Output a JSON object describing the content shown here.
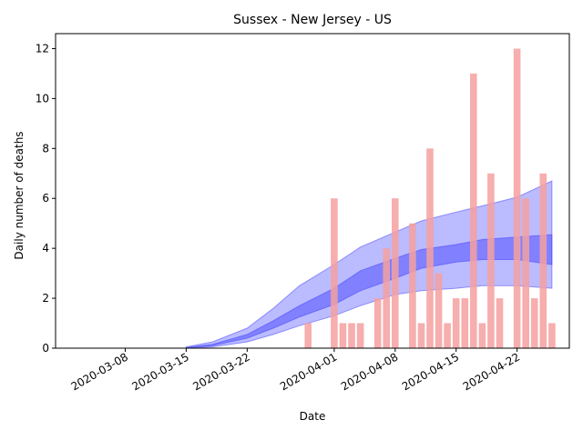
{
  "chart_data": {
    "type": "bar",
    "title": "Sussex - New Jersey - US",
    "xlabel": "Date",
    "ylabel": "Daily number of deaths",
    "ylim": [
      0,
      12.6
    ],
    "xlim": [
      "2020-02-29",
      "2020-04-28"
    ],
    "yticks": [
      0,
      2,
      4,
      6,
      8,
      10,
      12
    ],
    "xticks": [
      "2020-03-08",
      "2020-03-15",
      "2020-03-22",
      "2020-04-01",
      "2020-04-08",
      "2020-04-15",
      "2020-04-22"
    ],
    "grid": false,
    "bar_color": "#f4a0a0",
    "band_color": "#3b3bff",
    "bars": {
      "dates": [
        "2020-03-29",
        "2020-03-30",
        "2020-03-31",
        "2020-04-01",
        "2020-04-02",
        "2020-04-03",
        "2020-04-04",
        "2020-04-05",
        "2020-04-06",
        "2020-04-07",
        "2020-04-08",
        "2020-04-09",
        "2020-04-10",
        "2020-04-11",
        "2020-04-12",
        "2020-04-13",
        "2020-04-14",
        "2020-04-15",
        "2020-04-16",
        "2020-04-17",
        "2020-04-18",
        "2020-04-19",
        "2020-04-20",
        "2020-04-21",
        "2020-04-22",
        "2020-04-23",
        "2020-04-24",
        "2020-04-25",
        "2020-04-26"
      ],
      "values": [
        1,
        0,
        0,
        6,
        1,
        1,
        1,
        0,
        2,
        4,
        6,
        0,
        5,
        1,
        8,
        3,
        1,
        2,
        2,
        11,
        1,
        7,
        2,
        0,
        12,
        6,
        2,
        7,
        1
      ]
    },
    "bands": {
      "dates": [
        "2020-03-15",
        "2020-03-18",
        "2020-03-22",
        "2020-03-25",
        "2020-03-28",
        "2020-04-01",
        "2020-04-04",
        "2020-04-08",
        "2020-04-11",
        "2020-04-15",
        "2020-04-18",
        "2020-04-22",
        "2020-04-26"
      ],
      "outer_low": [
        0.0,
        0.05,
        0.25,
        0.55,
        0.9,
        1.3,
        1.7,
        2.15,
        2.3,
        2.4,
        2.5,
        2.5,
        2.4
      ],
      "inner_low": [
        0.02,
        0.1,
        0.4,
        0.8,
        1.25,
        1.75,
        2.3,
        2.8,
        3.2,
        3.45,
        3.55,
        3.55,
        3.35
      ],
      "inner_high": [
        0.03,
        0.15,
        0.55,
        1.1,
        1.7,
        2.4,
        3.1,
        3.6,
        3.95,
        4.15,
        4.35,
        4.45,
        4.55
      ],
      "outer_high": [
        0.05,
        0.25,
        0.8,
        1.6,
        2.5,
        3.35,
        4.05,
        4.65,
        5.1,
        5.45,
        5.7,
        6.05,
        6.7
      ]
    }
  }
}
